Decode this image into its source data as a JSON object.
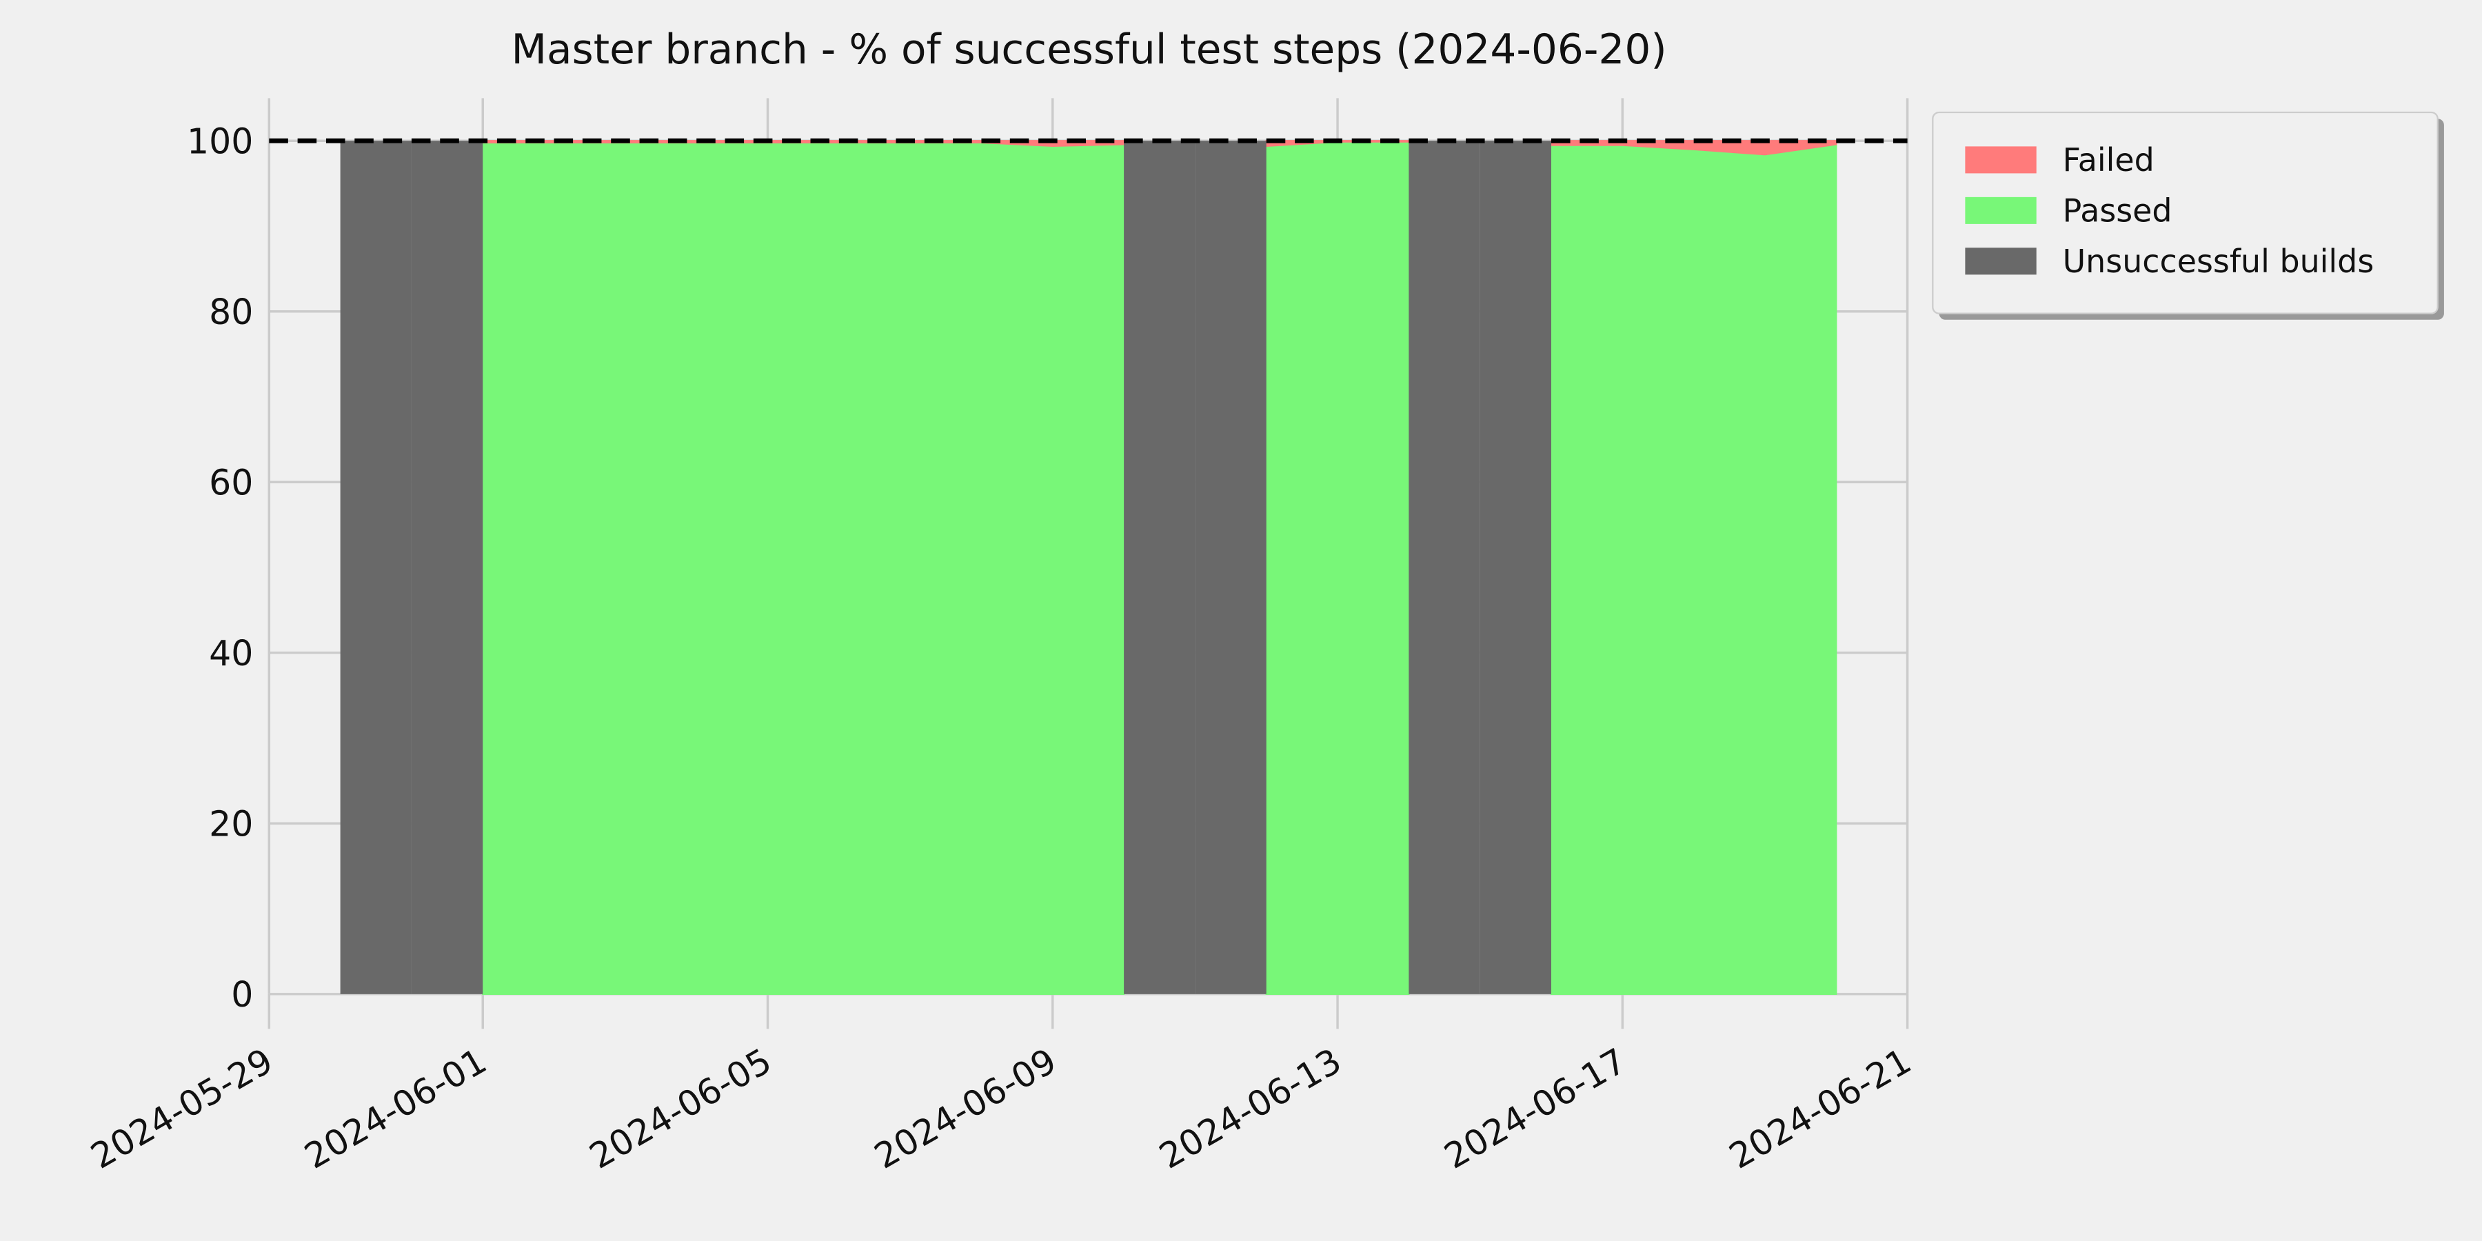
{
  "chart_data": {
    "type": "area",
    "title": "Master branch - % of successful test steps (2024-06-20)",
    "x": [
      "2024-05-30",
      "2024-05-31",
      "2024-06-01",
      "2024-06-02",
      "2024-06-03",
      "2024-06-04",
      "2024-06-05",
      "2024-06-06",
      "2024-06-07",
      "2024-06-08",
      "2024-06-09",
      "2024-06-10",
      "2024-06-11",
      "2024-06-12",
      "2024-06-13",
      "2024-06-14",
      "2024-06-15",
      "2024-06-16",
      "2024-06-17",
      "2024-06-18",
      "2024-06-19",
      "2024-06-20"
    ],
    "series": [
      {
        "name": "Failed",
        "color": "#ff7b7b",
        "stack_on": 1,
        "values": [
          null,
          null,
          0.4,
          0.4,
          0.4,
          0.4,
          0.4,
          0.4,
          0.4,
          0.4,
          0.8,
          0.6,
          null,
          0.8,
          0.3,
          0.3,
          null,
          0.7,
          0.7,
          1.2,
          1.8,
          0.6
        ]
      },
      {
        "name": "Passed",
        "color": "#78f778",
        "values": [
          null,
          null,
          99.6,
          99.6,
          99.6,
          99.6,
          99.6,
          99.6,
          99.6,
          99.6,
          99.2,
          99.4,
          null,
          99.2,
          99.7,
          99.7,
          null,
          99.3,
          99.3,
          98.8,
          98.2,
          99.4
        ]
      },
      {
        "name": "Unsuccessful builds",
        "color": "#696969",
        "step": true,
        "values": [
          100,
          100,
          null,
          null,
          null,
          null,
          null,
          null,
          null,
          null,
          null,
          100,
          100,
          null,
          null,
          100,
          100,
          null,
          null,
          null,
          null,
          null
        ]
      }
    ],
    "reference_line": 100,
    "xlim": [
      "2024-05-29",
      "2024-06-21"
    ],
    "xticks": [
      "2024-05-29",
      "2024-06-01",
      "2024-06-05",
      "2024-06-09",
      "2024-06-13",
      "2024-06-17",
      "2024-06-21"
    ],
    "ylim": [
      0,
      105
    ],
    "yticks": [
      0,
      20,
      40,
      60,
      80,
      100
    ],
    "grid": true,
    "legend": "outside-upper-right"
  }
}
